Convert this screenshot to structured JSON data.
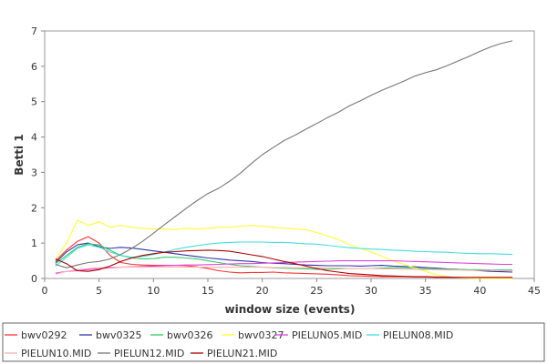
{
  "chart_data": {
    "type": "line",
    "title": "",
    "xlabel": "window size (events)",
    "ylabel": "Betti 1",
    "xlim": [
      0,
      45
    ],
    "ylim": [
      0,
      7
    ],
    "xticks": [
      0,
      5,
      10,
      15,
      20,
      25,
      30,
      35,
      40,
      45
    ],
    "yticks": [
      0,
      1,
      2,
      3,
      4,
      5,
      6,
      7
    ],
    "grid": false,
    "legend_position": "bottom",
    "series": [
      {
        "name": "bwv0292",
        "color": "#ff3333",
        "x": [
          1,
          2,
          3,
          4,
          5,
          6,
          7,
          8,
          9,
          10,
          11,
          12,
          13,
          14,
          15,
          16,
          17,
          18,
          19,
          20,
          21,
          22,
          23,
          24,
          25,
          26,
          27,
          28,
          29,
          30,
          31,
          32,
          33,
          34,
          35,
          36,
          37,
          38,
          39,
          40,
          41,
          42,
          43
        ],
        "y": [
          0.5,
          0.8,
          1.05,
          1.18,
          1.0,
          0.65,
          0.45,
          0.4,
          0.38,
          0.37,
          0.37,
          0.37,
          0.36,
          0.33,
          0.28,
          0.22,
          0.18,
          0.16,
          0.17,
          0.17,
          0.18,
          0.16,
          0.15,
          0.14,
          0.13,
          0.12,
          0.1,
          0.08,
          0.07,
          0.06,
          0.05,
          0.05,
          0.05,
          0.04,
          0.04,
          0.03,
          0.03,
          0.03,
          0.02,
          0.02,
          0.02,
          0.02,
          0.02
        ]
      },
      {
        "name": "bwv0325",
        "color": "#3333aa",
        "x": [
          1,
          2,
          3,
          4,
          5,
          6,
          7,
          8,
          9,
          10,
          11,
          12,
          13,
          14,
          15,
          16,
          17,
          18,
          19,
          20,
          21,
          22,
          23,
          24,
          25,
          26,
          27,
          28,
          29,
          30,
          31,
          32,
          33,
          34,
          35,
          36,
          37,
          38,
          39,
          40,
          41,
          42,
          43
        ],
        "y": [
          0.45,
          0.75,
          0.95,
          1.0,
          0.9,
          0.85,
          0.88,
          0.86,
          0.82,
          0.78,
          0.74,
          0.7,
          0.66,
          0.62,
          0.58,
          0.55,
          0.52,
          0.5,
          0.48,
          0.45,
          0.43,
          0.42,
          0.4,
          0.38,
          0.37,
          0.36,
          0.36,
          0.36,
          0.35,
          0.36,
          0.37,
          0.35,
          0.34,
          0.33,
          0.31,
          0.29,
          0.27,
          0.26,
          0.24,
          0.22,
          0.2,
          0.19,
          0.18
        ]
      },
      {
        "name": "bwv0326",
        "color": "#33cc66",
        "x": [
          1,
          2,
          3,
          4,
          5,
          6,
          7,
          8,
          9,
          10,
          11,
          12,
          13,
          14,
          15,
          16,
          17,
          18,
          19,
          20,
          21,
          22,
          23,
          24,
          25,
          26,
          27,
          28,
          29,
          30,
          31,
          32,
          33,
          34,
          35,
          36,
          37,
          38,
          39,
          40,
          41,
          42,
          43
        ],
        "y": [
          0.42,
          0.65,
          0.88,
          0.98,
          0.95,
          0.8,
          0.65,
          0.58,
          0.55,
          0.56,
          0.6,
          0.6,
          0.58,
          0.55,
          0.5,
          0.45,
          0.4,
          0.36,
          0.34,
          0.32,
          0.3,
          0.29,
          0.28,
          0.27,
          0.26,
          0.26,
          0.27,
          0.28,
          0.28,
          0.28,
          0.29,
          0.3,
          0.3,
          0.29,
          0.28,
          0.27,
          0.26,
          0.26,
          0.25,
          0.25,
          0.24,
          0.24,
          0.24
        ]
      },
      {
        "name": "bwv0327",
        "color": "#ffff33",
        "x": [
          1,
          2,
          3,
          4,
          5,
          6,
          7,
          8,
          9,
          10,
          11,
          12,
          13,
          14,
          15,
          16,
          17,
          18,
          19,
          20,
          21,
          22,
          23,
          24,
          25,
          26,
          27,
          28,
          29,
          30,
          31,
          32,
          33,
          34,
          35,
          36,
          37,
          38,
          39,
          40,
          41,
          42,
          43
        ],
        "y": [
          0.55,
          1.0,
          1.65,
          1.5,
          1.6,
          1.45,
          1.5,
          1.45,
          1.42,
          1.4,
          1.4,
          1.38,
          1.42,
          1.4,
          1.42,
          1.45,
          1.45,
          1.48,
          1.5,
          1.48,
          1.45,
          1.42,
          1.4,
          1.38,
          1.3,
          1.2,
          1.1,
          0.95,
          0.85,
          0.75,
          0.62,
          0.5,
          0.4,
          0.3,
          0.2,
          0.1,
          0.05,
          0.02,
          0.01,
          0.0,
          0.0,
          0.0,
          0.0
        ]
      },
      {
        "name": "PIELUN05.MID",
        "color": "#dd44dd",
        "x": [
          1,
          2,
          3,
          4,
          5,
          6,
          7,
          8,
          9,
          10,
          11,
          12,
          13,
          14,
          15,
          16,
          17,
          18,
          19,
          20,
          21,
          22,
          23,
          24,
          25,
          26,
          27,
          28,
          29,
          30,
          31,
          32,
          33,
          34,
          35,
          36,
          37,
          38,
          39,
          40,
          41,
          42,
          43
        ],
        "y": [
          0.15,
          0.2,
          0.22,
          0.25,
          0.28,
          0.3,
          0.32,
          0.33,
          0.34,
          0.35,
          0.36,
          0.37,
          0.38,
          0.38,
          0.39,
          0.4,
          0.41,
          0.42,
          0.42,
          0.43,
          0.44,
          0.45,
          0.46,
          0.47,
          0.48,
          0.49,
          0.5,
          0.5,
          0.5,
          0.5,
          0.5,
          0.5,
          0.49,
          0.48,
          0.47,
          0.46,
          0.45,
          0.44,
          0.43,
          0.42,
          0.41,
          0.4,
          0.4
        ]
      },
      {
        "name": "PIELUN08.MID",
        "color": "#44dddd",
        "x": [
          1,
          2,
          3,
          4,
          5,
          6,
          7,
          8,
          9,
          10,
          11,
          12,
          13,
          14,
          15,
          16,
          17,
          18,
          19,
          20,
          21,
          22,
          23,
          24,
          25,
          26,
          27,
          28,
          29,
          30,
          31,
          32,
          33,
          34,
          35,
          36,
          37,
          38,
          39,
          40,
          41,
          42,
          43
        ],
        "y": [
          0.35,
          0.6,
          0.85,
          0.95,
          0.88,
          0.75,
          0.65,
          0.6,
          0.62,
          0.68,
          0.75,
          0.82,
          0.88,
          0.93,
          0.97,
          1.0,
          1.02,
          1.03,
          1.03,
          1.03,
          1.02,
          1.02,
          1.0,
          0.98,
          0.97,
          0.94,
          0.9,
          0.87,
          0.85,
          0.83,
          0.82,
          0.8,
          0.79,
          0.77,
          0.76,
          0.75,
          0.74,
          0.72,
          0.71,
          0.7,
          0.7,
          0.69,
          0.68
        ]
      },
      {
        "name": "PIELUN10.MID",
        "color": "#ffb0b0",
        "x": [
          1,
          2,
          3,
          4,
          5,
          6,
          7,
          8,
          9,
          10,
          11,
          12,
          13,
          14,
          15,
          16,
          17,
          18,
          19,
          20,
          21,
          22,
          23,
          24,
          25,
          26,
          27,
          28,
          29,
          30,
          31,
          32,
          33,
          34,
          35,
          36,
          37,
          38,
          39,
          40,
          41,
          42,
          43
        ],
        "y": [
          0.12,
          0.2,
          0.25,
          0.28,
          0.3,
          0.32,
          0.32,
          0.32,
          0.32,
          0.32,
          0.32,
          0.32,
          0.32,
          0.32,
          0.32,
          0.32,
          0.32,
          0.32,
          0.32,
          0.32,
          0.31,
          0.31,
          0.3,
          0.3,
          0.3,
          0.29,
          0.29,
          0.28,
          0.28,
          0.28,
          0.27,
          0.27,
          0.26,
          0.26,
          0.25,
          0.25,
          0.24,
          0.24,
          0.23,
          0.23,
          0.23,
          0.22,
          0.22
        ]
      },
      {
        "name": "PIELUN12.MID",
        "color": "#777777",
        "x": [
          1,
          2,
          3,
          4,
          5,
          6,
          7,
          8,
          9,
          10,
          11,
          12,
          13,
          14,
          15,
          16,
          17,
          18,
          19,
          20,
          21,
          22,
          23,
          24,
          25,
          26,
          27,
          28,
          29,
          30,
          31,
          32,
          33,
          34,
          35,
          36,
          37,
          38,
          39,
          40,
          41,
          42,
          43
        ],
        "y": [
          0.4,
          0.3,
          0.38,
          0.45,
          0.48,
          0.55,
          0.68,
          0.85,
          1.05,
          1.28,
          1.52,
          1.75,
          1.98,
          2.2,
          2.4,
          2.55,
          2.75,
          2.98,
          3.25,
          3.5,
          3.7,
          3.9,
          4.05,
          4.22,
          4.38,
          4.55,
          4.7,
          4.88,
          5.02,
          5.18,
          5.32,
          5.45,
          5.58,
          5.72,
          5.82,
          5.9,
          6.02,
          6.15,
          6.28,
          6.42,
          6.55,
          6.65,
          6.72
        ]
      },
      {
        "name": "PIELUN21.MID",
        "color": "#aa0000",
        "x": [
          1,
          2,
          3,
          4,
          5,
          6,
          7,
          8,
          9,
          10,
          11,
          12,
          13,
          14,
          15,
          16,
          17,
          18,
          19,
          20,
          21,
          22,
          23,
          24,
          25,
          26,
          27,
          28,
          29,
          30,
          31,
          32,
          33,
          34,
          35,
          36,
          37,
          38,
          39,
          40,
          41,
          42,
          43
        ],
        "y": [
          0.55,
          0.42,
          0.22,
          0.2,
          0.25,
          0.35,
          0.48,
          0.58,
          0.65,
          0.7,
          0.74,
          0.76,
          0.78,
          0.79,
          0.8,
          0.79,
          0.77,
          0.72,
          0.67,
          0.62,
          0.55,
          0.48,
          0.42,
          0.35,
          0.28,
          0.22,
          0.18,
          0.14,
          0.12,
          0.1,
          0.08,
          0.07,
          0.06,
          0.05,
          0.05,
          0.04,
          0.04,
          0.03,
          0.03,
          0.03,
          0.03,
          0.03,
          0.03
        ]
      }
    ]
  }
}
